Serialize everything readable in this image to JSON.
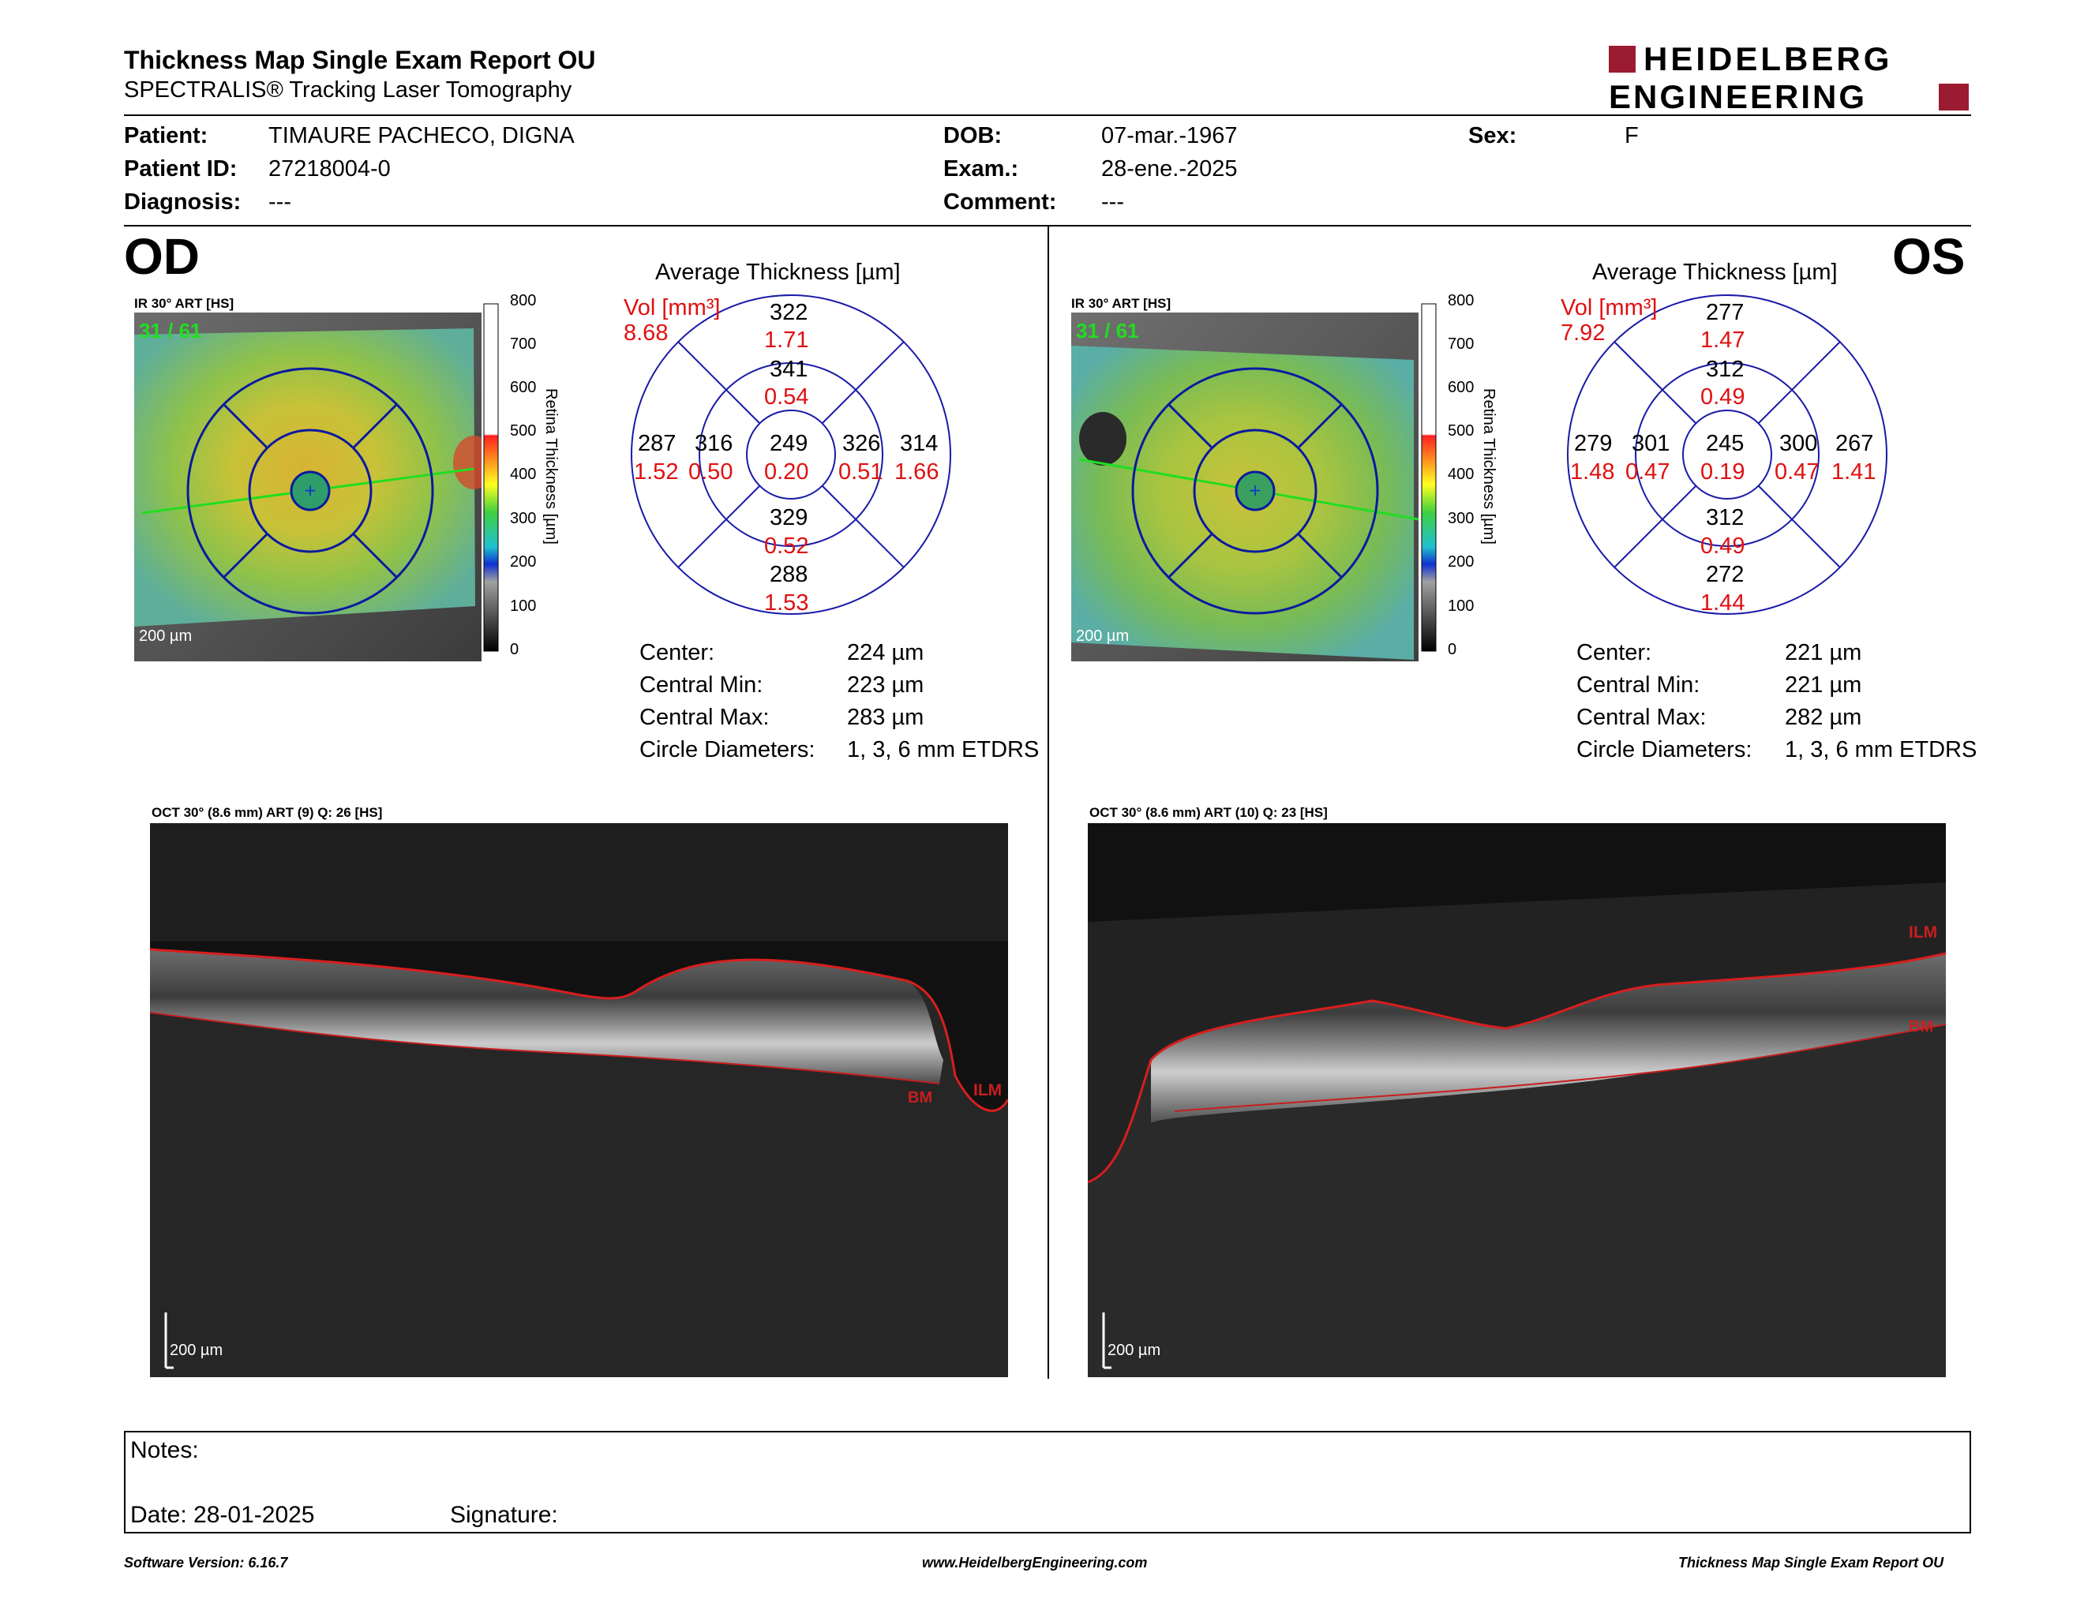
{
  "header": {
    "title": "Thickness Map Single Exam Report OU",
    "subtitle": "SPECTRALIS® Tracking Laser Tomography",
    "logo_line1": "HEIDELBERG",
    "logo_line2": "ENGINEERING",
    "brand_color": "#9b1b30"
  },
  "patient": {
    "patient_label": "Patient:",
    "patient_value": "TIMAURE PACHECO, DIGNA",
    "id_label": "Patient ID:",
    "id_value": "27218004-0",
    "diagnosis_label": "Diagnosis:",
    "diagnosis_value": "---",
    "dob_label": "DOB:",
    "dob_value": "07-mar.-1967",
    "exam_label": "Exam.:",
    "exam_value": "28-ene.-2025",
    "comment_label": "Comment:",
    "comment_value": "---",
    "sex_label": "Sex:",
    "sex_value": "F"
  },
  "od": {
    "eye": "OD",
    "ir_label": "IR 30° ART [HS]",
    "frame": "31 / 61",
    "scale": "200 µm",
    "colorbar_ticks": [
      "800",
      "700",
      "600",
      "500",
      "400",
      "300",
      "200",
      "100",
      "0"
    ],
    "colorbar_title": "Retina Thickness [µm]",
    "avg_title": "Average Thickness [µm]",
    "vol_label": "Vol [mm³]",
    "vol_value": "8.68",
    "sectors": {
      "outer_sup": {
        "t": "322",
        "v": "1.71"
      },
      "inner_sup": {
        "t": "341",
        "v": "0.54"
      },
      "outer_left": {
        "t": "287",
        "v": "1.52"
      },
      "inner_left": {
        "t": "316",
        "v": "0.50"
      },
      "center": {
        "t": "249",
        "v": "0.20"
      },
      "inner_right": {
        "t": "326",
        "v": "0.51"
      },
      "outer_right": {
        "t": "314",
        "v": "1.66"
      },
      "inner_inf": {
        "t": "329",
        "v": "0.52"
      },
      "outer_inf": {
        "t": "288",
        "v": "1.53"
      }
    },
    "stats": {
      "center_label": "Center:",
      "center_value": "224 µm",
      "min_label": "Central Min:",
      "min_value": "223 µm",
      "max_label": "Central Max:",
      "max_value": "283 µm",
      "diam_label": "Circle Diameters:",
      "diam_value": "1, 3, 6 mm ETDRS"
    },
    "oct_label": "OCT 30° (8.6 mm) ART (9) Q: 26 [HS]",
    "oct_scale": "200 µm",
    "ilm": "ILM",
    "bm": "BM"
  },
  "os": {
    "eye": "OS",
    "ir_label": "IR 30° ART [HS]",
    "frame": "31 / 61",
    "scale": "200 µm",
    "colorbar_ticks": [
      "800",
      "700",
      "600",
      "500",
      "400",
      "300",
      "200",
      "100",
      "0"
    ],
    "colorbar_title": "Retina Thickness [µm]",
    "avg_title": "Average Thickness [µm]",
    "vol_label": "Vol [mm³]",
    "vol_value": "7.92",
    "sectors": {
      "outer_sup": {
        "t": "277",
        "v": "1.47"
      },
      "inner_sup": {
        "t": "312",
        "v": "0.49"
      },
      "outer_left": {
        "t": "279",
        "v": "1.48"
      },
      "inner_left": {
        "t": "301",
        "v": "0.47"
      },
      "center": {
        "t": "245",
        "v": "0.19"
      },
      "inner_right": {
        "t": "300",
        "v": "0.47"
      },
      "outer_right": {
        "t": "267",
        "v": "1.41"
      },
      "inner_inf": {
        "t": "312",
        "v": "0.49"
      },
      "outer_inf": {
        "t": "272",
        "v": "1.44"
      }
    },
    "stats": {
      "center_label": "Center:",
      "center_value": "221 µm",
      "min_label": "Central Min:",
      "min_value": "221 µm",
      "max_label": "Central Max:",
      "max_value": "282 µm",
      "diam_label": "Circle Diameters:",
      "diam_value": "1, 3, 6 mm ETDRS"
    },
    "oct_label": "OCT 30° (8.6 mm) ART (10) Q: 23 [HS]",
    "oct_scale": "200 µm",
    "ilm": "ILM",
    "bm": "BM"
  },
  "notes": {
    "notes_label": "Notes:",
    "date_label": "Date: 28-01-2025",
    "signature_label": "Signature:"
  },
  "footer": {
    "software": "Software Version: 6.16.7",
    "website": "www.HeidelbergEngineering.com",
    "report": "Thickness Map Single Exam Report OU"
  }
}
